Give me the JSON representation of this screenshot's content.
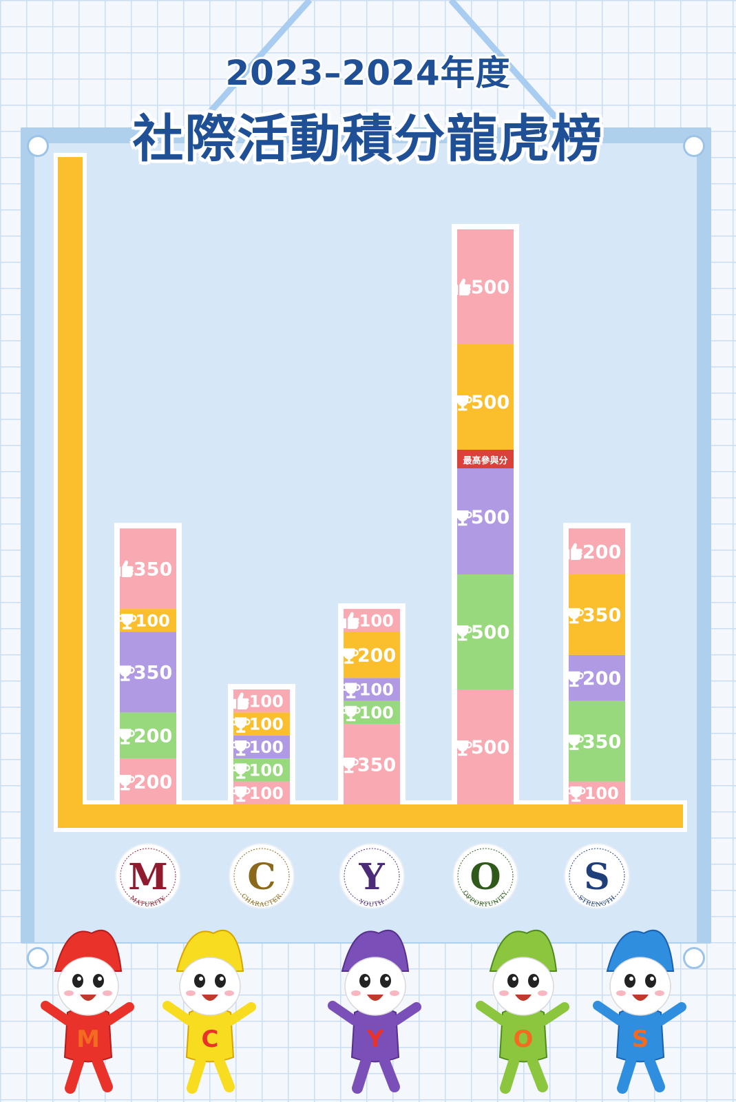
{
  "title": {
    "year": "2023–2024年度",
    "main": "社際活動積分龍虎榜"
  },
  "colors": {
    "pink": "#f9a9b2",
    "yellow": "#fbbf2e",
    "purple": "#b19ae4",
    "green": "#98d97d",
    "axis": "#fbbf2e",
    "badge": "#d9413a",
    "title": "#1f4f94"
  },
  "icons": {
    "trophy": "trophy-icon",
    "thumb": "thumbs-up-icon"
  },
  "chart_data": {
    "type": "bar",
    "stacked": true,
    "categories": [
      "M",
      "C",
      "Y",
      "O",
      "S"
    ],
    "houses": [
      {
        "letter": "M",
        "word": "MATURITY",
        "color": "#8e1c2e",
        "segments": [
          {
            "value": 200,
            "color": "pink",
            "icon": "trophy",
            "label": "200"
          },
          {
            "value": 200,
            "color": "green",
            "icon": "trophy",
            "label": "200"
          },
          {
            "value": 350,
            "color": "purple",
            "icon": "trophy",
            "label": "350"
          },
          {
            "value": 100,
            "color": "yellow",
            "icon": "trophy",
            "label": "100"
          },
          {
            "value": 350,
            "color": "pink",
            "icon": "thumb",
            "label": "350"
          }
        ]
      },
      {
        "letter": "C",
        "word": "CHARACTER",
        "color": "#8a6a1a",
        "segments": [
          {
            "value": 100,
            "color": "pink",
            "icon": "trophy",
            "label": "100"
          },
          {
            "value": 100,
            "color": "green",
            "icon": "trophy",
            "label": "100"
          },
          {
            "value": 100,
            "color": "purple",
            "icon": "trophy",
            "label": "100"
          },
          {
            "value": 100,
            "color": "yellow",
            "icon": "trophy",
            "label": "100"
          },
          {
            "value": 100,
            "color": "pink",
            "icon": "thumb",
            "label": "100"
          }
        ]
      },
      {
        "letter": "Y",
        "word": "YOUTH",
        "color": "#4b2a7a",
        "segments": [
          {
            "value": 350,
            "color": "pink",
            "icon": "trophy",
            "label": "350"
          },
          {
            "value": 100,
            "color": "green",
            "icon": "trophy",
            "label": "100"
          },
          {
            "value": 100,
            "color": "purple",
            "icon": "trophy",
            "label": "100"
          },
          {
            "value": 200,
            "color": "yellow",
            "icon": "trophy",
            "label": "200"
          },
          {
            "value": 100,
            "color": "pink",
            "icon": "thumb",
            "label": "100"
          }
        ]
      },
      {
        "letter": "O",
        "word": "OPPORTUNITY",
        "color": "#2f5a1c",
        "badge": "最高參與分",
        "segments": [
          {
            "value": 500,
            "color": "pink",
            "icon": "trophy",
            "label": "500"
          },
          {
            "value": 500,
            "color": "green",
            "icon": "trophy",
            "label": "500"
          },
          {
            "value": 500,
            "color": "purple",
            "icon": "trophy",
            "label": "500"
          },
          {
            "value": 500,
            "color": "yellow",
            "icon": "trophy",
            "label": "500"
          },
          {
            "value": 500,
            "color": "pink",
            "icon": "thumb",
            "label": "500"
          }
        ]
      },
      {
        "letter": "S",
        "word": "STRENGTH",
        "color": "#1e3f7a",
        "segments": [
          {
            "value": 100,
            "color": "pink",
            "icon": "trophy",
            "label": "100"
          },
          {
            "value": 350,
            "color": "green",
            "icon": "trophy",
            "label": "350"
          },
          {
            "value": 200,
            "color": "purple",
            "icon": "trophy",
            "label": "200"
          },
          {
            "value": 350,
            "color": "yellow",
            "icon": "trophy",
            "label": "350"
          },
          {
            "value": 200,
            "color": "pink",
            "icon": "thumb",
            "label": "200"
          }
        ]
      }
    ]
  },
  "mascots": [
    {
      "letter": "M",
      "color": "#e8322a",
      "dark": "#b31d1d"
    },
    {
      "letter": "C",
      "color": "#f7dc1f",
      "dark": "#d9a400"
    },
    {
      "letter": "Y",
      "color": "#7b4fb8",
      "dark": "#55308a"
    },
    {
      "letter": "O",
      "color": "#8cc63f",
      "dark": "#4f8a1c"
    },
    {
      "letter": "S",
      "color": "#2f8fde",
      "dark": "#1a5fb0"
    }
  ]
}
